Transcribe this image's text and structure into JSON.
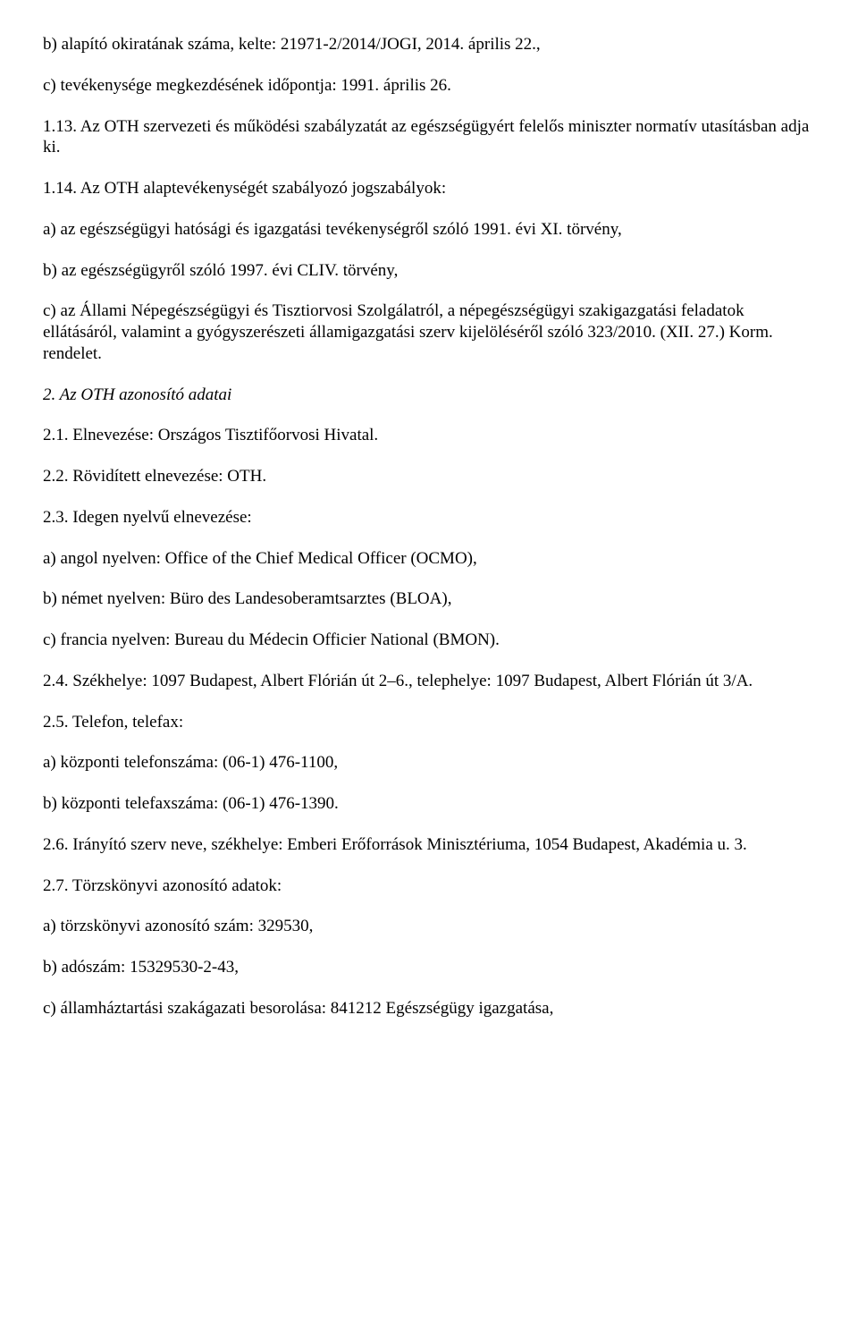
{
  "doc": {
    "p1": "b) alapító okiratának száma, kelte: 21971-2/2014/JOGI, 2014. április 22.,",
    "p2": "c) tevékenysége megkezdésének időpontja: 1991. április 26.",
    "p3": "1.13. Az OTH szervezeti és működési szabályzatát az egészségügyért felelős miniszter normatív utasításban adja ki.",
    "p4": "1.14. Az OTH alaptevékenységét szabályozó jogszabályok:",
    "p5": "a) az egészségügyi hatósági és igazgatási tevékenységről szóló 1991. évi XI. törvény,",
    "p6": "b) az egészségügyről szóló 1997. évi CLIV. törvény,",
    "p7": "c) az Állami Népegészségügyi és Tisztiorvosi Szolgálatról, a népegészségügyi szakigazgatási feladatok ellátásáról, valamint a gyógyszerészeti államigazgatási szerv kijelöléséről szóló 323/2010. (XII. 27.) Korm. rendelet.",
    "p8": "2. Az OTH azonosító adatai",
    "p9": "2.1. Elnevezése: Országos Tisztifőorvosi Hivatal.",
    "p10": "2.2. Rövidített elnevezése: OTH.",
    "p11": "2.3. Idegen nyelvű elnevezése:",
    "p12": "a) angol nyelven: Office of the Chief Medical Officer (OCMO),",
    "p13": "b) német nyelven: Büro des Landesoberamtsarztes (BLOA),",
    "p14": "c) francia nyelven: Bureau du Médecin Officier National (BMON).",
    "p15": "2.4. Székhelye: 1097 Budapest, Albert Flórián út 2–6., telephelye: 1097 Budapest, Albert Flórián út 3/A.",
    "p16": "2.5. Telefon, telefax:",
    "p17": "a) központi telefonszáma: (06-1) 476-1100,",
    "p18": "b) központi telefaxszáma: (06-1) 476-1390.",
    "p19": "2.6. Irányító szerv neve, székhelye: Emberi Erőforrások Minisztériuma, 1054 Budapest, Akadémia u. 3.",
    "p20": "2.7. Törzskönyvi azonosító adatok:",
    "p21": "a) törzskönyvi azonosító szám: 329530,",
    "p22": "b) adószám: 15329530-2-43,",
    "p23": "c) államháztartási szakágazati besorolása: 841212 Egészségügy igazgatása,"
  }
}
